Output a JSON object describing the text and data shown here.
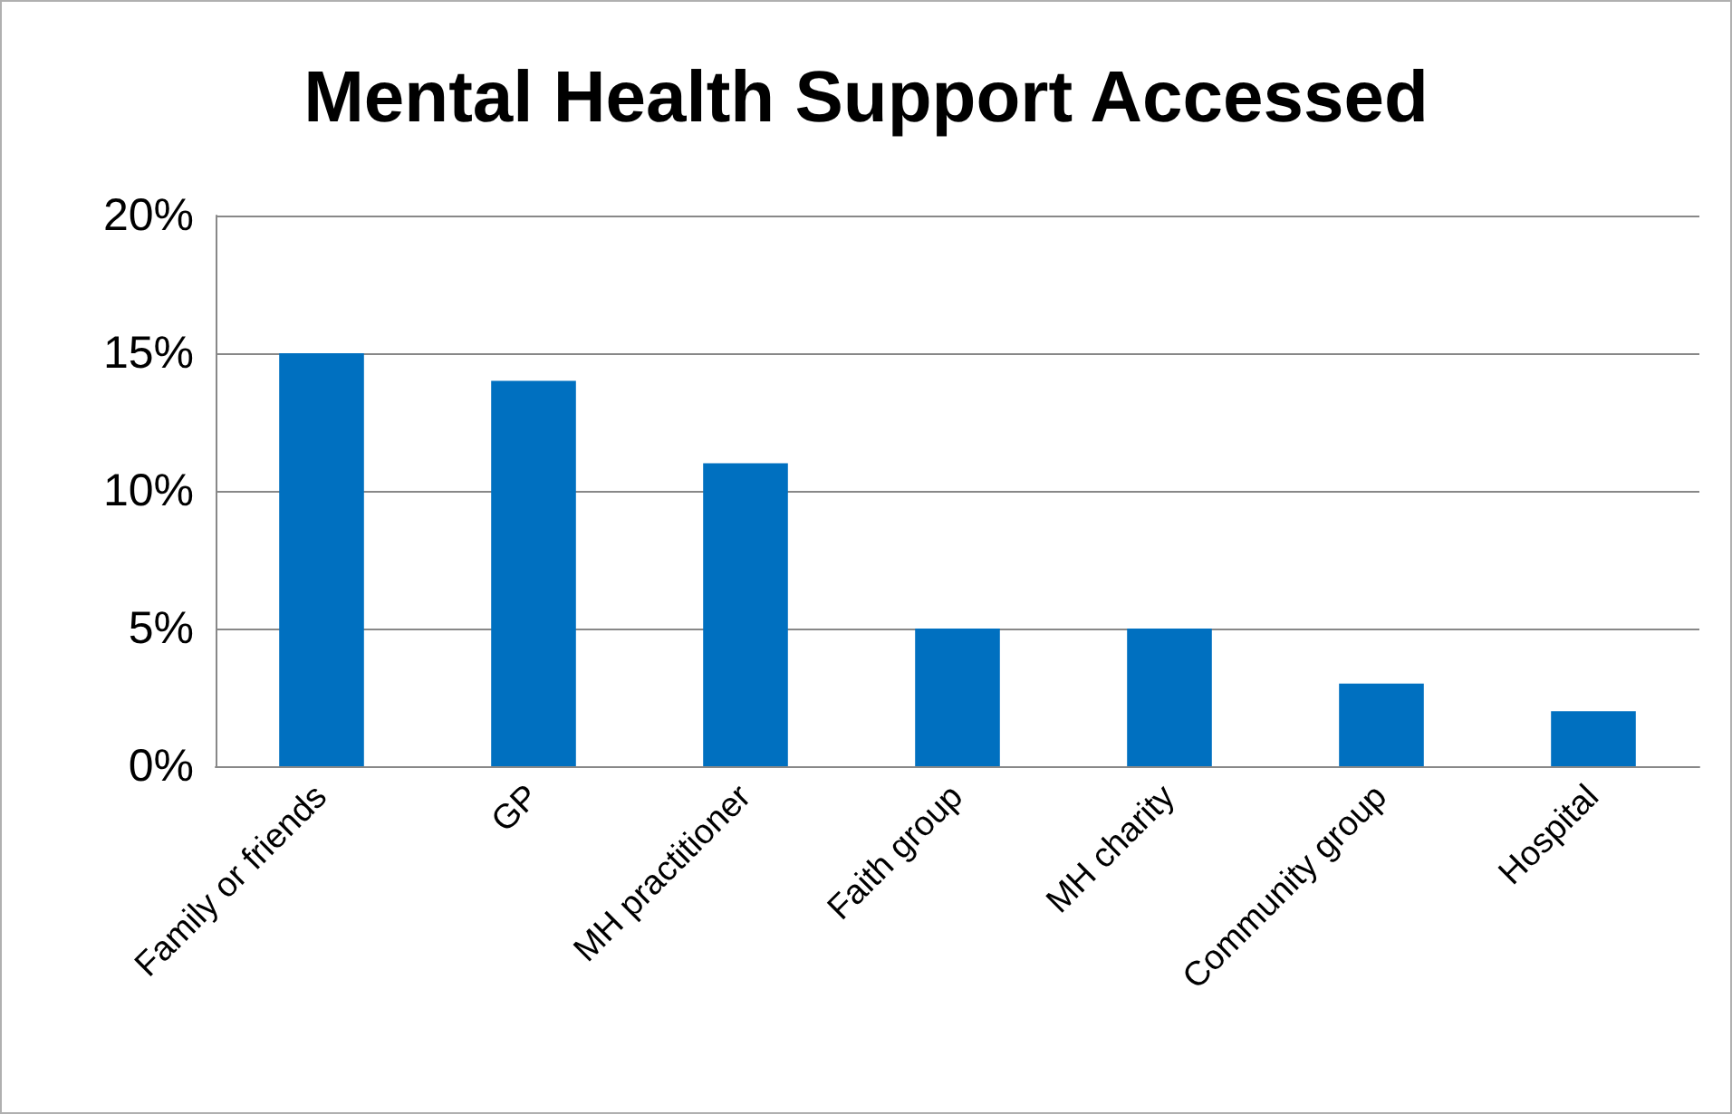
{
  "chart_data": {
    "type": "bar",
    "title": "Mental Health Support Accessed",
    "categories": [
      "Family or friends",
      "GP",
      "MH practitioner",
      "Faith group",
      "MH charity",
      "Community group",
      "Hospital"
    ],
    "values": [
      15,
      14,
      11,
      5,
      5,
      3,
      2
    ],
    "color": "#0070c0",
    "ylim": [
      0,
      20
    ],
    "yticks": [
      {
        "value": 0,
        "label": "0%"
      },
      {
        "value": 5,
        "label": "5%"
      },
      {
        "value": 10,
        "label": "10%"
      },
      {
        "value": 15,
        "label": "15%"
      },
      {
        "value": 20,
        "label": "20%"
      }
    ],
    "grid": "y"
  }
}
